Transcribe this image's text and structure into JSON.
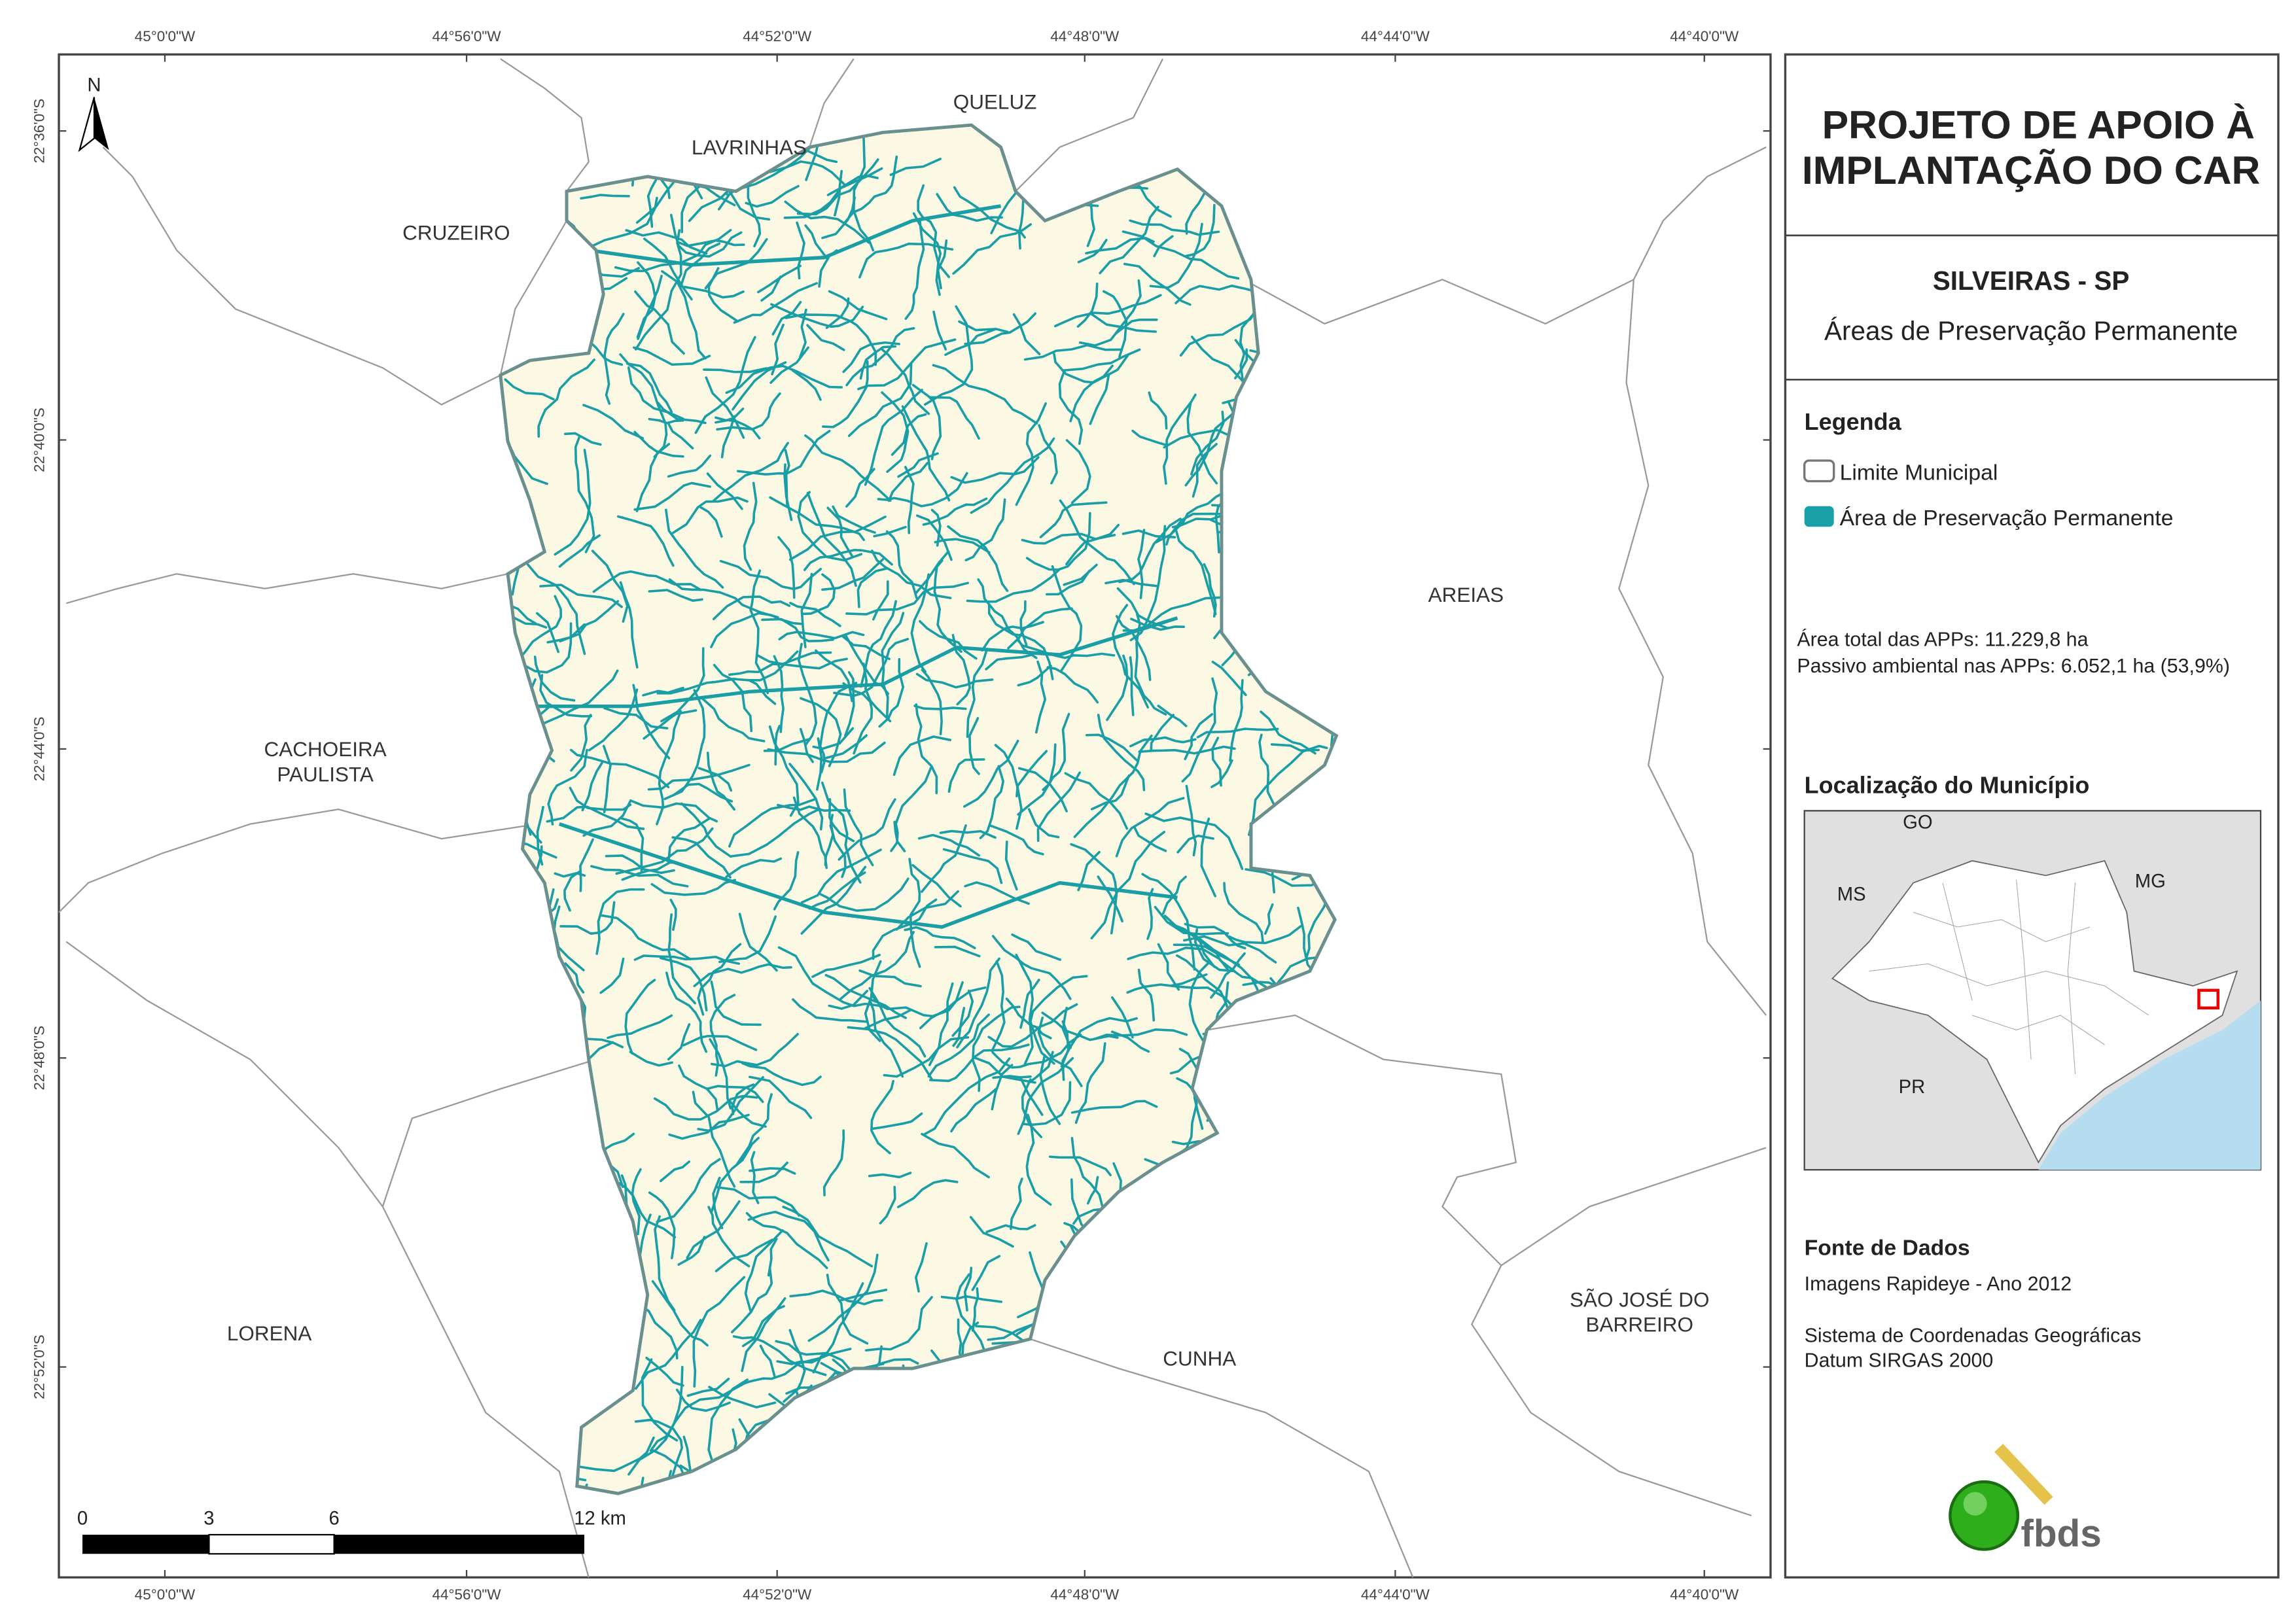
{
  "map": {
    "lon_labels": [
      "45°0'0\"W",
      "44°56'0\"W",
      "44°52'0\"W",
      "44°48'0\"W",
      "44°44'0\"W",
      "44°40'0\"W"
    ],
    "lat_labels": [
      "22°36'0\"S",
      "22°40'0\"S",
      "22°44'0\"S",
      "22°48'0\"S",
      "22°52'0\"S"
    ],
    "places": [
      {
        "lines": [
          "QUELUZ"
        ]
      },
      {
        "lines": [
          "LAVRINHAS"
        ]
      },
      {
        "lines": [
          "CRUZEIRO"
        ]
      },
      {
        "lines": [
          "AREIAS"
        ]
      },
      {
        "lines": [
          "CACHOEIRA",
          "PAULISTA"
        ]
      },
      {
        "lines": [
          "LORENA"
        ]
      },
      {
        "lines": [
          "CUNHA"
        ]
      },
      {
        "lines": [
          "SÃO JOSÉ DO",
          "BARREIRO"
        ]
      }
    ],
    "north": "N",
    "scale_labels": [
      "0",
      "3",
      "6",
      "12 km"
    ]
  },
  "panel": {
    "title": [
      "PROJETO DE APOIO À",
      "IMPLANTAÇÃO DO CAR"
    ],
    "municipality": "SILVEIRAS - SP",
    "subtitle": "Áreas de Preservação Permanente",
    "legend_title": "Legenda",
    "legend": [
      "Limite Municipal",
      "Área de Preservação Permanente"
    ],
    "stats": [
      "Área total das APPs: 11.229,8 ha",
      "Passivo ambiental nas APPs: 6.052,1 ha (53,9%)"
    ],
    "location_title": "Localização do Município",
    "location_labels": [
      "GO",
      "MS",
      "MG",
      "PR"
    ],
    "source_title": "Fonte de Dados",
    "source_lines": [
      "Imagens Rapideye - Ano 2012",
      "Sistema de Coordenadas Geográficas",
      "Datum SIRGAS 2000"
    ],
    "logo": "fbds"
  }
}
